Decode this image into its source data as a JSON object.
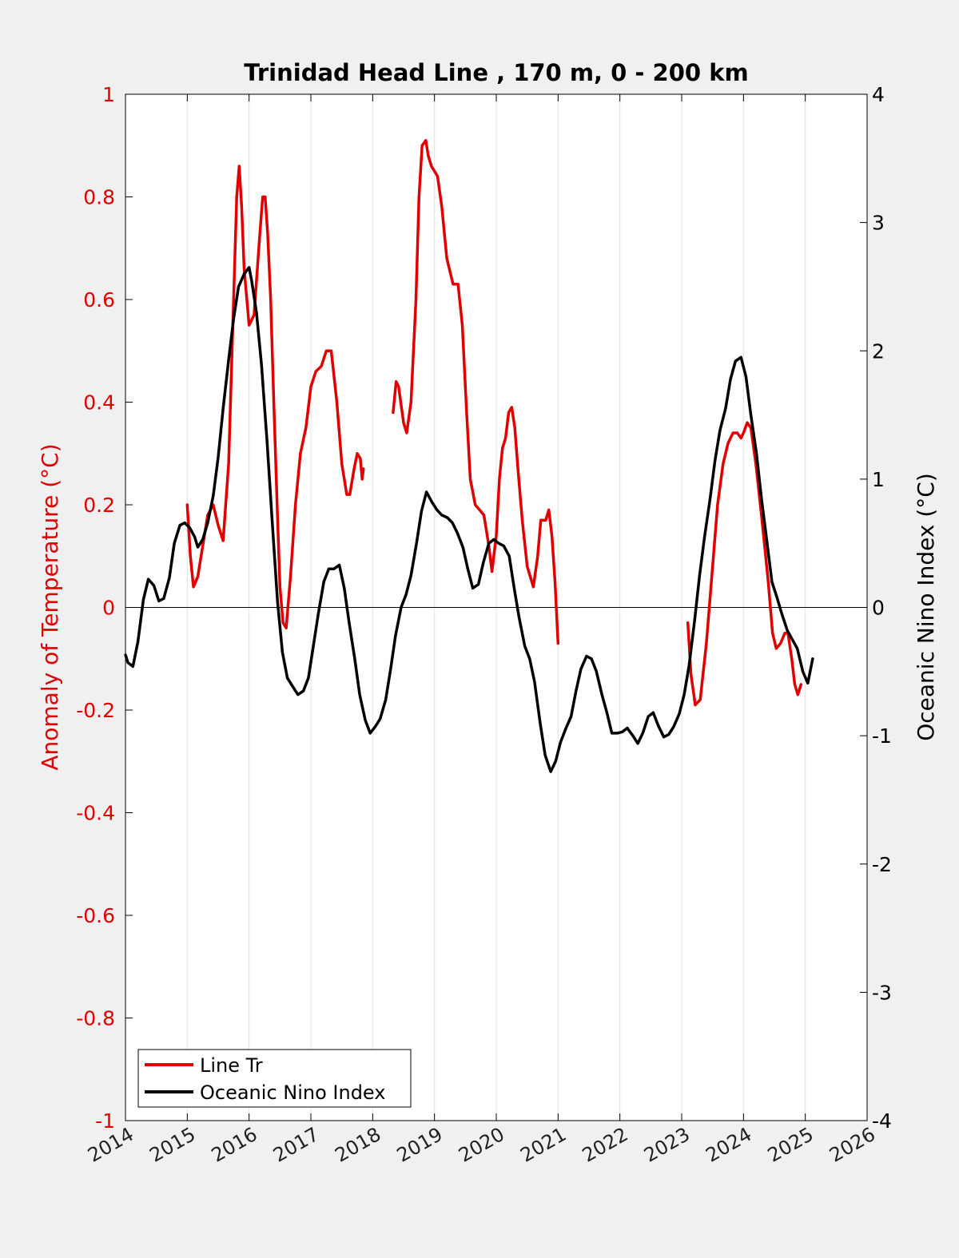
{
  "chart_data": {
    "type": "line",
    "title": "Trinidad Head Line , 170 m, 0 - 200 km",
    "xlim": [
      2014,
      2026
    ],
    "xticks": [
      "2014",
      "2015",
      "2016",
      "2017",
      "2018",
      "2019",
      "2020",
      "2021",
      "2022",
      "2023",
      "2024",
      "2025",
      "2026"
    ],
    "grid": "vertical",
    "legend_position": "bottom-left",
    "zero_line": true,
    "y_left": {
      "label": "Anomaly of Temperature (°C)",
      "lim": [
        -1,
        1
      ],
      "ticks": [
        "-1",
        "-0.8",
        "-0.6",
        "-0.4",
        "-0.2",
        "0",
        "0.2",
        "0.4",
        "0.6",
        "0.8",
        "1"
      ],
      "color": "#e00000"
    },
    "y_right": {
      "label": "Oceanic Nino Index (°C)",
      "lim": [
        -4,
        4
      ],
      "ticks": [
        "-4",
        "-3",
        "-2",
        "-1",
        "0",
        "1",
        "2",
        "3",
        "4"
      ],
      "color": "#000000"
    },
    "series": [
      {
        "name": "Line Tr",
        "axis": "left",
        "color": "#e00000",
        "segments": [
          [
            [
              2015.0,
              0.2
            ],
            [
              2015.05,
              0.1
            ],
            [
              2015.1,
              0.04
            ],
            [
              2015.17,
              0.06
            ],
            [
              2015.25,
              0.12
            ],
            [
              2015.33,
              0.18
            ],
            [
              2015.42,
              0.2
            ],
            [
              2015.5,
              0.16
            ],
            [
              2015.58,
              0.13
            ],
            [
              2015.67,
              0.28
            ],
            [
              2015.75,
              0.6
            ],
            [
              2015.8,
              0.8
            ],
            [
              2015.84,
              0.86
            ],
            [
              2015.88,
              0.78
            ],
            [
              2015.92,
              0.66
            ],
            [
              2016.0,
              0.55
            ],
            [
              2016.08,
              0.57
            ],
            [
              2016.17,
              0.72
            ],
            [
              2016.22,
              0.8
            ],
            [
              2016.26,
              0.8
            ],
            [
              2016.3,
              0.73
            ],
            [
              2016.35,
              0.6
            ],
            [
              2016.4,
              0.4
            ],
            [
              2016.46,
              0.18
            ],
            [
              2016.5,
              0.04
            ],
            [
              2016.55,
              -0.03
            ],
            [
              2016.6,
              -0.04
            ],
            [
              2016.67,
              0.06
            ],
            [
              2016.75,
              0.2
            ],
            [
              2016.83,
              0.3
            ],
            [
              2016.92,
              0.35
            ],
            [
              2017.0,
              0.43
            ],
            [
              2017.08,
              0.46
            ],
            [
              2017.17,
              0.47
            ],
            [
              2017.25,
              0.5
            ],
            [
              2017.33,
              0.5
            ],
            [
              2017.42,
              0.4
            ],
            [
              2017.5,
              0.28
            ],
            [
              2017.58,
              0.22
            ],
            [
              2017.63,
              0.22
            ],
            [
              2017.7,
              0.27
            ],
            [
              2017.75,
              0.3
            ],
            [
              2017.8,
              0.29
            ],
            [
              2017.83,
              0.25
            ],
            [
              2017.85,
              0.27
            ]
          ],
          [
            [
              2018.33,
              0.38
            ],
            [
              2018.38,
              0.44
            ],
            [
              2018.42,
              0.43
            ],
            [
              2018.5,
              0.36
            ],
            [
              2018.55,
              0.34
            ],
            [
              2018.62,
              0.4
            ],
            [
              2018.7,
              0.6
            ],
            [
              2018.75,
              0.8
            ],
            [
              2018.8,
              0.9
            ],
            [
              2018.86,
              0.91
            ],
            [
              2018.9,
              0.88
            ],
            [
              2018.95,
              0.86
            ],
            [
              2019.0,
              0.85
            ],
            [
              2019.05,
              0.84
            ],
            [
              2019.12,
              0.78
            ],
            [
              2019.2,
              0.68
            ],
            [
              2019.3,
              0.63
            ],
            [
              2019.38,
              0.63
            ],
            [
              2019.45,
              0.55
            ],
            [
              2019.52,
              0.38
            ],
            [
              2019.58,
              0.25
            ],
            [
              2019.66,
              0.2
            ],
            [
              2019.73,
              0.19
            ],
            [
              2019.8,
              0.18
            ],
            [
              2019.88,
              0.12
            ],
            [
              2019.93,
              0.07
            ],
            [
              2020.0,
              0.14
            ],
            [
              2020.05,
              0.25
            ],
            [
              2020.1,
              0.31
            ],
            [
              2020.15,
              0.33
            ],
            [
              2020.2,
              0.38
            ],
            [
              2020.25,
              0.39
            ],
            [
              2020.3,
              0.35
            ],
            [
              2020.35,
              0.27
            ],
            [
              2020.42,
              0.17
            ],
            [
              2020.5,
              0.08
            ],
            [
              2020.55,
              0.06
            ],
            [
              2020.6,
              0.04
            ],
            [
              2020.67,
              0.1
            ],
            [
              2020.72,
              0.17
            ],
            [
              2020.77,
              0.17
            ],
            [
              2020.8,
              0.17
            ],
            [
              2020.85,
              0.19
            ],
            [
              2020.9,
              0.14
            ],
            [
              2020.95,
              0.05
            ],
            [
              2021.0,
              -0.07
            ]
          ],
          [
            [
              2023.1,
              -0.03
            ],
            [
              2023.15,
              -0.13
            ],
            [
              2023.22,
              -0.19
            ],
            [
              2023.3,
              -0.18
            ],
            [
              2023.4,
              -0.07
            ],
            [
              2023.5,
              0.08
            ],
            [
              2023.58,
              0.2
            ],
            [
              2023.67,
              0.28
            ],
            [
              2023.75,
              0.32
            ],
            [
              2023.83,
              0.34
            ],
            [
              2023.9,
              0.34
            ],
            [
              2023.96,
              0.33
            ],
            [
              2024.0,
              0.34
            ],
            [
              2024.06,
              0.36
            ],
            [
              2024.12,
              0.35
            ],
            [
              2024.2,
              0.28
            ],
            [
              2024.3,
              0.17
            ],
            [
              2024.4,
              0.05
            ],
            [
              2024.47,
              -0.05
            ],
            [
              2024.53,
              -0.08
            ],
            [
              2024.6,
              -0.07
            ],
            [
              2024.67,
              -0.05
            ],
            [
              2024.72,
              -0.05
            ],
            [
              2024.78,
              -0.1
            ],
            [
              2024.83,
              -0.15
            ],
            [
              2024.88,
              -0.17
            ],
            [
              2024.93,
              -0.15
            ]
          ]
        ]
      },
      {
        "name": "Oceanic Nino Index",
        "axis": "right",
        "color": "#000000",
        "segments": [
          [
            [
              2014.0,
              -0.37
            ],
            [
              2014.04,
              -0.43
            ],
            [
              2014.12,
              -0.46
            ],
            [
              2014.2,
              -0.27
            ],
            [
              2014.29,
              0.06
            ],
            [
              2014.37,
              0.22
            ],
            [
              2014.46,
              0.17
            ],
            [
              2014.54,
              0.05
            ],
            [
              2014.62,
              0.07
            ],
            [
              2014.71,
              0.23
            ],
            [
              2014.79,
              0.5
            ],
            [
              2014.88,
              0.64
            ],
            [
              2014.96,
              0.66
            ],
            [
              2015.04,
              0.62
            ],
            [
              2015.12,
              0.55
            ],
            [
              2015.17,
              0.47
            ],
            [
              2015.25,
              0.53
            ],
            [
              2015.33,
              0.66
            ],
            [
              2015.42,
              0.87
            ],
            [
              2015.5,
              1.17
            ],
            [
              2015.58,
              1.55
            ],
            [
              2015.67,
              1.93
            ],
            [
              2015.75,
              2.25
            ],
            [
              2015.83,
              2.5
            ],
            [
              2015.92,
              2.6
            ],
            [
              2016.0,
              2.65
            ],
            [
              2016.04,
              2.55
            ],
            [
              2016.12,
              2.3
            ],
            [
              2016.2,
              1.9
            ],
            [
              2016.29,
              1.3
            ],
            [
              2016.37,
              0.7
            ],
            [
              2016.46,
              0.05
            ],
            [
              2016.54,
              -0.35
            ],
            [
              2016.62,
              -0.55
            ],
            [
              2016.71,
              -0.62
            ],
            [
              2016.79,
              -0.68
            ],
            [
              2016.88,
              -0.65
            ],
            [
              2016.96,
              -0.55
            ],
            [
              2017.04,
              -0.3
            ],
            [
              2017.12,
              -0.05
            ],
            [
              2017.21,
              0.2
            ],
            [
              2017.29,
              0.3
            ],
            [
              2017.37,
              0.3
            ],
            [
              2017.46,
              0.33
            ],
            [
              2017.54,
              0.15
            ],
            [
              2017.62,
              -0.12
            ],
            [
              2017.71,
              -0.4
            ],
            [
              2017.79,
              -0.68
            ],
            [
              2017.88,
              -0.88
            ],
            [
              2017.96,
              -0.98
            ],
            [
              2018.04,
              -0.93
            ],
            [
              2018.12,
              -0.87
            ],
            [
              2018.21,
              -0.72
            ],
            [
              2018.29,
              -0.48
            ],
            [
              2018.37,
              -0.22
            ],
            [
              2018.46,
              0.0
            ],
            [
              2018.54,
              0.1
            ],
            [
              2018.62,
              0.25
            ],
            [
              2018.71,
              0.5
            ],
            [
              2018.79,
              0.75
            ],
            [
              2018.87,
              0.9
            ],
            [
              2018.96,
              0.82
            ],
            [
              2019.04,
              0.76
            ],
            [
              2019.12,
              0.72
            ],
            [
              2019.21,
              0.7
            ],
            [
              2019.29,
              0.66
            ],
            [
              2019.37,
              0.58
            ],
            [
              2019.46,
              0.47
            ],
            [
              2019.54,
              0.3
            ],
            [
              2019.62,
              0.15
            ],
            [
              2019.71,
              0.18
            ],
            [
              2019.79,
              0.35
            ],
            [
              2019.88,
              0.5
            ],
            [
              2019.96,
              0.53
            ],
            [
              2020.04,
              0.5
            ],
            [
              2020.12,
              0.48
            ],
            [
              2020.21,
              0.4
            ],
            [
              2020.29,
              0.15
            ],
            [
              2020.37,
              -0.08
            ],
            [
              2020.46,
              -0.3
            ],
            [
              2020.54,
              -0.4
            ],
            [
              2020.62,
              -0.58
            ],
            [
              2020.71,
              -0.9
            ],
            [
              2020.79,
              -1.15
            ],
            [
              2020.88,
              -1.28
            ],
            [
              2020.96,
              -1.2
            ],
            [
              2021.04,
              -1.05
            ],
            [
              2021.12,
              -0.95
            ],
            [
              2021.21,
              -0.85
            ],
            [
              2021.29,
              -0.65
            ],
            [
              2021.37,
              -0.48
            ],
            [
              2021.46,
              -0.38
            ],
            [
              2021.54,
              -0.4
            ],
            [
              2021.62,
              -0.5
            ],
            [
              2021.71,
              -0.68
            ],
            [
              2021.79,
              -0.82
            ],
            [
              2021.87,
              -0.98
            ],
            [
              2021.96,
              -0.98
            ],
            [
              2022.04,
              -0.97
            ],
            [
              2022.12,
              -0.94
            ],
            [
              2022.21,
              -1.0
            ],
            [
              2022.29,
              -1.06
            ],
            [
              2022.37,
              -0.98
            ],
            [
              2022.46,
              -0.85
            ],
            [
              2022.54,
              -0.82
            ],
            [
              2022.62,
              -0.92
            ],
            [
              2022.71,
              -1.01
            ],
            [
              2022.79,
              -0.99
            ],
            [
              2022.87,
              -0.93
            ],
            [
              2022.96,
              -0.83
            ],
            [
              2023.04,
              -0.68
            ],
            [
              2023.12,
              -0.45
            ],
            [
              2023.21,
              -0.1
            ],
            [
              2023.29,
              0.25
            ],
            [
              2023.37,
              0.55
            ],
            [
              2023.46,
              0.85
            ],
            [
              2023.54,
              1.15
            ],
            [
              2023.62,
              1.38
            ],
            [
              2023.71,
              1.55
            ],
            [
              2023.79,
              1.78
            ],
            [
              2023.87,
              1.92
            ],
            [
              2023.96,
              1.95
            ],
            [
              2024.04,
              1.8
            ],
            [
              2024.12,
              1.5
            ],
            [
              2024.21,
              1.2
            ],
            [
              2024.29,
              0.85
            ],
            [
              2024.37,
              0.55
            ],
            [
              2024.46,
              0.2
            ],
            [
              2024.54,
              0.08
            ],
            [
              2024.62,
              -0.05
            ],
            [
              2024.71,
              -0.18
            ],
            [
              2024.79,
              -0.25
            ],
            [
              2024.87,
              -0.32
            ],
            [
              2024.96,
              -0.5
            ],
            [
              2025.04,
              -0.59
            ],
            [
              2025.12,
              -0.4
            ]
          ]
        ]
      }
    ]
  }
}
